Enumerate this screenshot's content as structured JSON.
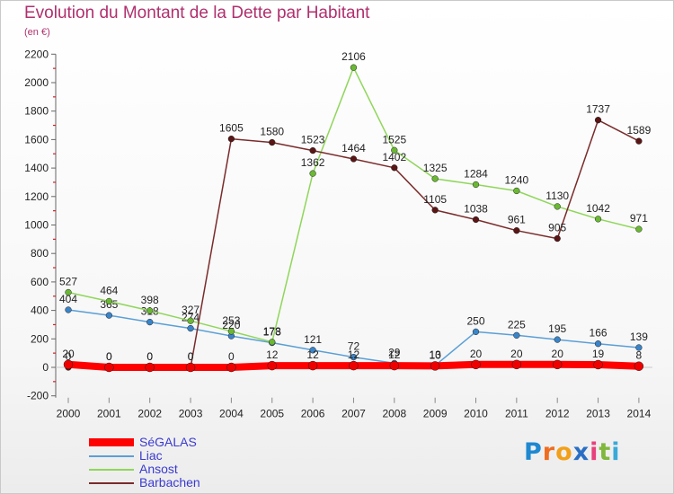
{
  "title": "Evolution du Montant de la Dette par Habitant",
  "subtitle": "(en €)",
  "logo": {
    "letters": [
      "P",
      "r",
      "o",
      "x",
      "i",
      "t",
      "i"
    ],
    "colors": [
      "#1e88d0",
      "#ee6d1f",
      "#f2a019",
      "#2a6fc4",
      "#e8407a",
      "#7fb83a",
      "#3aa9d8"
    ]
  },
  "chart_data": {
    "type": "line",
    "title": "Evolution du Montant de la Dette par Habitant",
    "subtitle": "(en €)",
    "x": [
      "2000",
      "2001",
      "2002",
      "2003",
      "2004",
      "2005",
      "2006",
      "2007",
      "2008",
      "2009",
      "2010",
      "2011",
      "2012",
      "2013",
      "2014"
    ],
    "ylim": [
      -200,
      2200
    ],
    "yticks": [
      "-200",
      "0",
      "200",
      "400",
      "600",
      "800",
      "1000",
      "1200",
      "1400",
      "1600",
      "1800",
      "2000",
      "2200"
    ],
    "grid": false,
    "legend_position": "bottom-left",
    "series": [
      {
        "name": "Liac",
        "color": "#5a9fd6",
        "marker": "#3a84c8",
        "width": 1.5,
        "values": [
          404,
          365,
          318,
          274,
          220,
          173,
          121,
          72,
          29,
          13,
          250,
          225,
          195,
          166,
          139
        ],
        "labels": [
          "404",
          "365",
          "318",
          "274",
          "220",
          "173",
          "121",
          "72",
          "29",
          "13",
          "250",
          "225",
          "195",
          "166",
          "139"
        ]
      },
      {
        "name": "Ansost",
        "color": "#8fd65a",
        "marker": "#6ab833",
        "width": 1.5,
        "values": [
          527,
          464,
          398,
          327,
          253,
          178,
          1362,
          2106,
          1525,
          1325,
          1284,
          1240,
          1130,
          1042,
          971
        ],
        "labels": [
          "527",
          "464",
          "398",
          "327",
          "253",
          "178",
          "1362",
          "2106",
          "1525",
          "1325",
          "1284",
          "1240",
          "1130",
          "1042",
          "971"
        ]
      },
      {
        "name": "Barbachen",
        "color": "#7a2b2b",
        "marker": "#5a1515",
        "width": 1.5,
        "values": [
          0,
          0,
          0,
          0,
          1605,
          1580,
          1523,
          1464,
          1402,
          1105,
          1038,
          961,
          905,
          1737,
          1589
        ],
        "labels": [
          "0",
          "0",
          "0",
          "0",
          "1605",
          "1580",
          "1523",
          "1464",
          "1402",
          "1105",
          "1038",
          "961",
          "905",
          "1737",
          "1589"
        ]
      },
      {
        "name": "SéGALAS",
        "color": "#ff0000",
        "marker": "#ee0000",
        "width": 8,
        "values": [
          20,
          0,
          0,
          0,
          0,
          12,
          12,
          12,
          12,
          10,
          20,
          20,
          20,
          19,
          8
        ],
        "labels": [
          "20",
          "0",
          "0",
          "0",
          "0",
          "12",
          "12",
          "12",
          "12",
          "10",
          "20",
          "20",
          "20",
          "19",
          "8"
        ]
      }
    ],
    "legend_order": [
      "SéGALAS",
      "Liac",
      "Ansost",
      "Barbachen"
    ]
  }
}
